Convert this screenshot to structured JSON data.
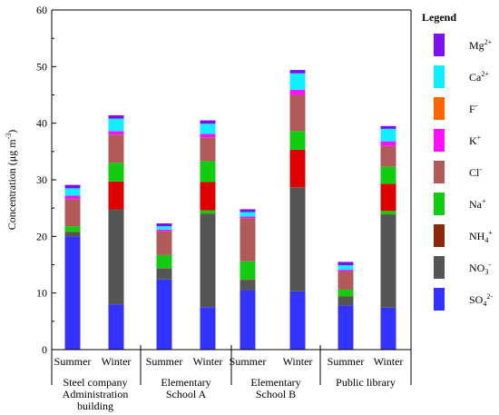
{
  "chart_data": {
    "type": "bar",
    "stacked": true,
    "ylabel_parts": {
      "base": "Concentration (μg m",
      "sup": "-3",
      "end": ")"
    },
    "ylim": [
      0,
      60
    ],
    "yticks": [
      0,
      10,
      20,
      30,
      40,
      50,
      60
    ],
    "legend_title": "Legend",
    "legend_placement": "right",
    "groups": [
      {
        "lines": [
          "Steel company",
          "Administration",
          "building"
        ]
      },
      {
        "lines": [
          "Elementary",
          "School A"
        ]
      },
      {
        "lines": [
          "Elementary",
          "School B"
        ]
      },
      {
        "lines": [
          "Public library"
        ]
      }
    ],
    "categories": [
      "Summer",
      "Winter",
      "Summer",
      "Winter",
      "Summer",
      "Winter",
      "Summer",
      "Winter"
    ],
    "series": [
      {
        "name": "SO₄²⁻",
        "base": "SO",
        "sub": "4",
        "sup": "2-",
        "color": "#3333ff",
        "values": [
          20.0,
          8.0,
          12.4,
          7.5,
          10.5,
          10.3,
          7.8,
          7.4
        ]
      },
      {
        "name": "NO₃⁻",
        "base": "NO",
        "sub": "3",
        "sup": "-",
        "color": "#555555",
        "values": [
          0.7,
          16.7,
          1.9,
          16.4,
          1.8,
          18.3,
          1.5,
          16.4
        ]
      },
      {
        "name": "NH₄⁺",
        "base": "NH",
        "sub": "4",
        "sup": "+",
        "color": "#8b2a0a",
        "values": [
          0.1,
          0.1,
          0.1,
          0.1,
          0.1,
          0.1,
          0.1,
          0.1
        ]
      },
      {
        "name": "Na⁺",
        "base": "Na",
        "sup": "+",
        "color": "#11cc11",
        "values": [
          1.0,
          0.0,
          2.3,
          0.6,
          3.2,
          0.0,
          1.2,
          0.6
        ]
      },
      {
        "name": "",
        "base": "",
        "color": "#dd0000",
        "values": [
          0.0,
          4.9,
          0.0,
          5.0,
          0.0,
          6.6,
          0.0,
          4.8
        ]
      },
      {
        "name": "",
        "base": "",
        "color": "#11cc11",
        "values": [
          0.0,
          3.3,
          0.0,
          3.7,
          0.0,
          3.3,
          0.0,
          3.0
        ]
      },
      {
        "name": "Cl⁻",
        "base": "Cl",
        "sup": "-",
        "color": "#b05a5a",
        "values": [
          4.8,
          5.0,
          4.2,
          4.2,
          7.6,
          6.4,
          3.2,
          3.7
        ]
      },
      {
        "name": "K⁺",
        "base": "K",
        "sup": "+",
        "color": "#ff10ff",
        "values": [
          0.6,
          0.6,
          0.3,
          0.6,
          0.3,
          0.9,
          0.3,
          0.8
        ]
      },
      {
        "name": "F⁻",
        "base": "F",
        "sup": "-",
        "color": "#ff6600",
        "values": [
          0.0,
          0.0,
          0.0,
          0.0,
          0.0,
          0.0,
          0.0,
          0.0
        ]
      },
      {
        "name": "Ca²⁺",
        "base": "Ca",
        "sup": "2+",
        "color": "#11eeff",
        "values": [
          1.3,
          2.2,
          0.6,
          1.8,
          0.8,
          2.9,
          0.8,
          2.2
        ]
      },
      {
        "name": "Mg²⁺",
        "base": "Mg",
        "sup": "2+",
        "color": "#7a11ee",
        "values": [
          0.6,
          0.6,
          0.5,
          0.6,
          0.5,
          0.6,
          0.6,
          0.5
        ]
      }
    ],
    "legend_order": [
      "Mg²⁺",
      "Ca²⁺",
      "F⁻",
      "K⁺",
      "Cl⁻",
      "Na⁺",
      "NH₄⁺",
      "NO₃⁻",
      "SO₄²⁻"
    ]
  }
}
